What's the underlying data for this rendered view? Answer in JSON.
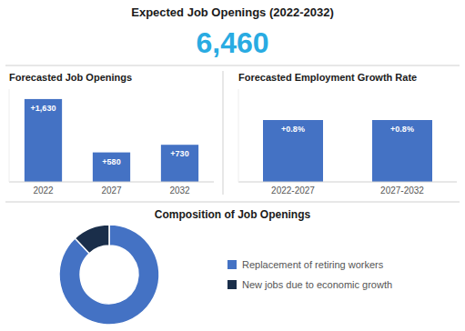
{
  "title": "Expected Job Openings (2022-2032)",
  "annotations": [
    "6,460"
  ],
  "chart_data": [
    {
      "type": "bar",
      "title": "Forecasted Job Openings",
      "categories": [
        "2022",
        "2027",
        "2032"
      ],
      "values": [
        1630,
        580,
        730
      ],
      "value_labels": [
        "+1,630",
        "+580",
        "+730"
      ],
      "data_labels": true,
      "color": "#4472c4",
      "ylim": [
        0,
        1825.6
      ],
      "tick_labels": "x",
      "grid": false
    },
    {
      "type": "bar",
      "title": "Forecasted Employment Growth Rate",
      "categories": [
        "2022-2027",
        "2027-2032"
      ],
      "values": [
        0.8,
        0.8
      ],
      "value_labels": [
        "+0.8%",
        "+0.8%"
      ],
      "data_labels": true,
      "color": "#4472c4",
      "ylim": [
        0,
        1.2
      ],
      "tick_labels": "x",
      "grid": false
    },
    {
      "type": "pie",
      "title": "Composition of Job Openings",
      "categories": [
        "Replacement of retiring workers",
        "New jobs due to economic growth"
      ],
      "values": [
        88,
        12
      ],
      "colors": [
        "#4472c4",
        "#1a2e4a"
      ],
      "legend": "right"
    }
  ]
}
